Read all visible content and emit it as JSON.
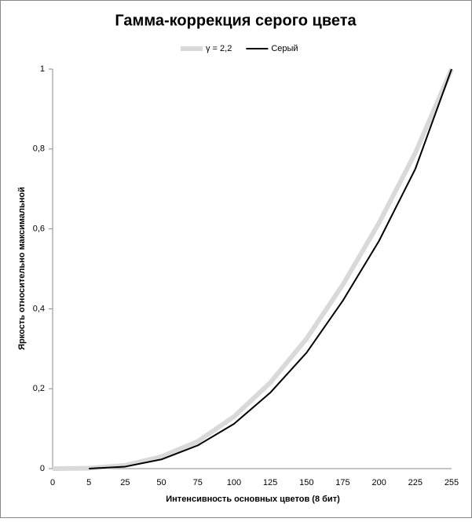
{
  "chart_data": {
    "type": "line",
    "title": "Гамма-коррекция серого цвета",
    "x_label": "Интенсивность  основных цветов (8 бит)",
    "y_label": "Яркость  относительно  максимальной",
    "categories": [
      "0",
      "5",
      "25",
      "50",
      "75",
      "100",
      "125",
      "150",
      "175",
      "200",
      "225",
      "255"
    ],
    "series": [
      {
        "name": "γ = 2,2",
        "color": "#d9d9d9",
        "values": [
          0,
          0.001,
          0.008,
          0.03,
          0.068,
          0.13,
          0.215,
          0.325,
          0.46,
          0.615,
          0.79,
          1
        ]
      },
      {
        "name": "Серый",
        "color": "#000000",
        "values": [
          null,
          0,
          0.005,
          0.023,
          0.058,
          0.112,
          0.19,
          0.29,
          0.42,
          0.57,
          0.75,
          1
        ]
      }
    ],
    "ylim": [
      0,
      1
    ],
    "yticks": [
      0,
      {
        "value": 0.2,
        "label": "0,2"
      },
      {
        "value": 0.4,
        "label": "0,4"
      },
      {
        "value": 0.6,
        "label": "0,6"
      },
      {
        "value": 0.8,
        "label": "0,8"
      },
      1
    ],
    "grid": false,
    "legend": "top"
  }
}
